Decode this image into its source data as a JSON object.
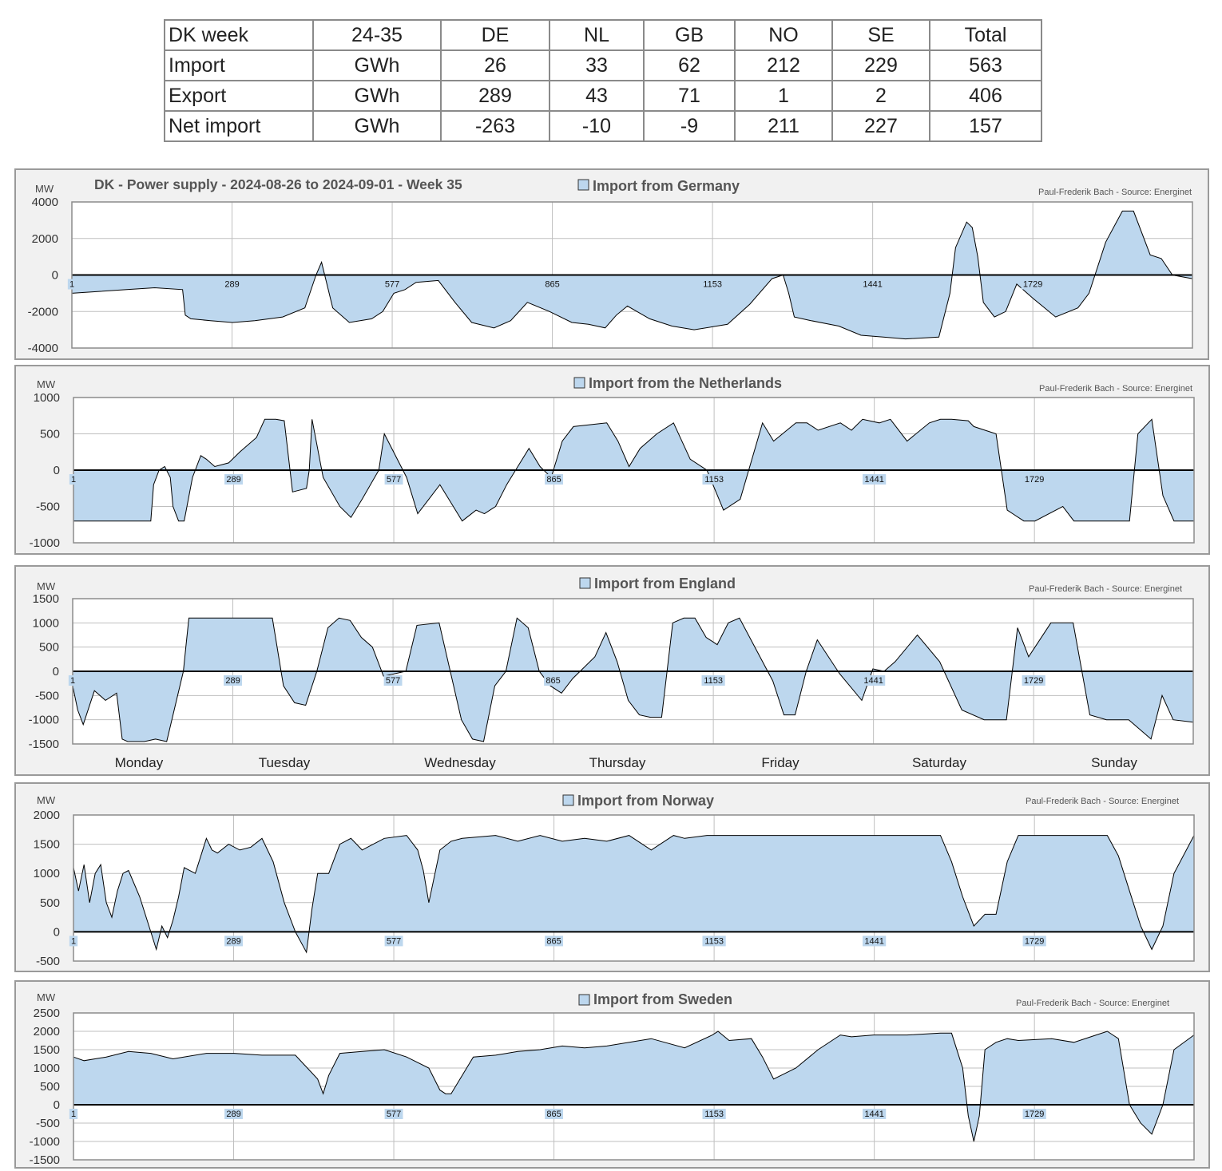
{
  "table": {
    "header": [
      "DK week",
      "24-35",
      "DE",
      "NL",
      "GB",
      "NO",
      "SE",
      "Total"
    ],
    "rows": [
      [
        "Import",
        "GWh",
        "26",
        "33",
        "62",
        "212",
        "229",
        "563"
      ],
      [
        "Export",
        "GWh",
        "289",
        "43",
        "71",
        "1",
        "2",
        "406"
      ],
      [
        "Net import",
        "GWh",
        "-263",
        "-10",
        "-9",
        "211",
        "227",
        "157"
      ]
    ]
  },
  "colors": {
    "fill": "#bdd7ee",
    "line": "#000000",
    "panel": "#f1f1f1",
    "border": "#9a9a9a",
    "grid": "#bfbfbf",
    "label_bg": "#bdd7ee"
  },
  "chart_data": [
    {
      "type": "area",
      "title": "DK - Power supply - 2024-08-26 to 2024-09-01 - Week 35",
      "legend": "Import from Germany",
      "credit": "Paul-Frederik Bach - Source: Energinet",
      "ylabel": "MW",
      "ylim": [
        -4000,
        4000
      ],
      "yticks": [
        "4000",
        "2000",
        "0",
        "-2000",
        "-4000"
      ],
      "xlim": [
        1,
        2016
      ],
      "xticks": [
        "1",
        "289",
        "577",
        "865",
        "1153",
        "1441",
        "1729"
      ],
      "grid": true,
      "x": [
        1,
        50,
        100,
        150,
        200,
        205,
        215,
        250,
        290,
        330,
        380,
        420,
        440,
        450,
        470,
        500,
        540,
        560,
        580,
        600,
        620,
        660,
        690,
        720,
        760,
        790,
        820,
        860,
        900,
        930,
        960,
        980,
        1000,
        1040,
        1080,
        1120,
        1180,
        1220,
        1260,
        1280,
        1290,
        1300,
        1330,
        1380,
        1420,
        1460,
        1500,
        1560,
        1580,
        1590,
        1610,
        1620,
        1630,
        1640,
        1660,
        1680,
        1700,
        1730,
        1770,
        1810,
        1830,
        1860,
        1890,
        1910,
        1940,
        1960,
        1980,
        2016
      ],
      "y": [
        -1000,
        -900,
        -800,
        -700,
        -800,
        -2200,
        -2400,
        -2500,
        -2600,
        -2500,
        -2300,
        -1800,
        0,
        700,
        -1800,
        -2600,
        -2400,
        -2000,
        -1000,
        -800,
        -400,
        -300,
        -1500,
        -2600,
        -2900,
        -2500,
        -1500,
        -2000,
        -2600,
        -2700,
        -2900,
        -2200,
        -1700,
        -2400,
        -2800,
        -3000,
        -2700,
        -1600,
        -200,
        0,
        -1000,
        -2300,
        -2500,
        -2800,
        -3300,
        -3400,
        -3500,
        -3400,
        -1000,
        1500,
        2900,
        2600,
        1000,
        -1500,
        -2300,
        -2000,
        -500,
        -1300,
        -2300,
        -1800,
        -1000,
        1800,
        3500,
        3500,
        1100,
        900,
        0,
        -200
      ]
    },
    {
      "type": "area",
      "legend": "Import from the Netherlands",
      "credit": "Paul-Frederik Bach - Source: Energinet",
      "ylabel": "MW",
      "ylim": [
        -1000,
        1000
      ],
      "yticks": [
        "1000",
        "500",
        "0",
        "-500",
        "-1000"
      ],
      "xlim": [
        1,
        2016
      ],
      "xticks": [
        "1",
        "289",
        "577",
        "865",
        "1153",
        "1441",
        "1729"
      ],
      "grid": true,
      "x": [
        1,
        140,
        145,
        155,
        165,
        175,
        180,
        190,
        200,
        215,
        220,
        230,
        240,
        255,
        280,
        300,
        330,
        345,
        365,
        380,
        395,
        420,
        425,
        430,
        450,
        480,
        500,
        520,
        550,
        560,
        600,
        620,
        640,
        660,
        700,
        725,
        740,
        760,
        780,
        800,
        820,
        840,
        860,
        880,
        900,
        960,
        980,
        1000,
        1020,
        1050,
        1080,
        1110,
        1140,
        1170,
        1200,
        1240,
        1260,
        1300,
        1320,
        1340,
        1380,
        1400,
        1420,
        1450,
        1470,
        1500,
        1540,
        1560,
        1580,
        1610,
        1620,
        1660,
        1680,
        1710,
        1730,
        1780,
        1800,
        1840,
        1900,
        1915,
        1940,
        1960,
        1980,
        2016
      ],
      "y": [
        -700,
        -700,
        -200,
        0,
        50,
        -100,
        -500,
        -700,
        -700,
        -100,
        0,
        200,
        150,
        50,
        100,
        250,
        450,
        700,
        700,
        680,
        -300,
        -250,
        0,
        700,
        -100,
        -500,
        -650,
        -400,
        0,
        500,
        -100,
        -600,
        -400,
        -200,
        -700,
        -550,
        -600,
        -500,
        -200,
        50,
        300,
        50,
        -100,
        400,
        600,
        650,
        400,
        50,
        300,
        500,
        650,
        150,
        0,
        -550,
        -400,
        650,
        400,
        650,
        650,
        550,
        650,
        550,
        700,
        650,
        700,
        400,
        650,
        700,
        700,
        680,
        600,
        500,
        -550,
        -700,
        -700,
        -500,
        -700,
        -700,
        -700,
        500,
        700,
        -350,
        -700,
        -700
      ]
    },
    {
      "type": "area",
      "legend": "Import from England",
      "credit": "Paul-Frederik Bach - Source: Energinet",
      "ylabel": "MW",
      "ylim": [
        -1500,
        1500
      ],
      "yticks": [
        "1500",
        "1000",
        "500",
        "0",
        "-500",
        "-1000",
        "-1500"
      ],
      "xlim": [
        1,
        2016
      ],
      "xticks": [
        "1",
        "289",
        "577",
        "865",
        "1153",
        "1441",
        "1729"
      ],
      "xcategories": [
        "Monday",
        "Tuesday",
        "Wednesday",
        "Thursday",
        "Friday",
        "Saturday",
        "Sunday"
      ],
      "grid": true,
      "x": [
        1,
        10,
        20,
        40,
        60,
        80,
        90,
        100,
        120,
        130,
        150,
        170,
        200,
        205,
        210,
        215,
        220,
        230,
        240,
        280,
        320,
        360,
        380,
        400,
        420,
        440,
        460,
        480,
        500,
        520,
        540,
        560,
        600,
        620,
        660,
        700,
        720,
        740,
        760,
        780,
        800,
        820,
        840,
        860,
        880,
        900,
        940,
        960,
        980,
        1000,
        1020,
        1040,
        1060,
        1080,
        1100,
        1120,
        1140,
        1160,
        1180,
        1200,
        1260,
        1280,
        1300,
        1320,
        1340,
        1380,
        1420,
        1440,
        1460,
        1480,
        1520,
        1560,
        1600,
        1640,
        1680,
        1700,
        1720,
        1760,
        1800,
        1830,
        1860,
        1900,
        1940,
        1960,
        1980,
        2016
      ],
      "y": [
        -300,
        -800,
        -1100,
        -400,
        -600,
        -450,
        -1400,
        -1450,
        -1450,
        -1450,
        -1400,
        -1450,
        0,
        550,
        1100,
        1100,
        1100,
        1100,
        1100,
        1100,
        1100,
        1100,
        -300,
        -650,
        -700,
        0,
        900,
        1100,
        1050,
        700,
        500,
        -100,
        0,
        950,
        1000,
        -1000,
        -1400,
        -1450,
        -300,
        0,
        1100,
        900,
        0,
        -300,
        -450,
        -150,
        300,
        800,
        200,
        -600,
        -900,
        -950,
        -950,
        1000,
        1100,
        1100,
        700,
        550,
        1000,
        1100,
        -200,
        -900,
        -900,
        0,
        650,
        -50,
        -600,
        50,
        0,
        200,
        750,
        200,
        -800,
        -1000,
        -1000,
        900,
        300,
        1000,
        1000,
        -900,
        -1000,
        -1000,
        -1400,
        -500,
        -1000,
        -1050
      ]
    },
    {
      "type": "area",
      "legend": "Import from Norway",
      "credit": "Paul-Frederik Bach - Source: Energinet",
      "ylabel": "MW",
      "ylim": [
        -500,
        2000
      ],
      "yticks": [
        "2000",
        "1500",
        "1000",
        "500",
        "0",
        "-500"
      ],
      "xlim": [
        1,
        2016
      ],
      "xticks": [
        "1",
        "289",
        "577",
        "865",
        "1153",
        "1441",
        "1729"
      ],
      "grid": true,
      "x": [
        1,
        10,
        20,
        30,
        40,
        50,
        60,
        70,
        80,
        90,
        100,
        120,
        140,
        150,
        160,
        170,
        180,
        190,
        200,
        220,
        240,
        250,
        260,
        280,
        300,
        320,
        340,
        360,
        380,
        400,
        420,
        430,
        440,
        460,
        480,
        500,
        520,
        540,
        560,
        600,
        620,
        630,
        640,
        660,
        680,
        700,
        760,
        800,
        840,
        880,
        920,
        960,
        1000,
        1040,
        1080,
        1100,
        1140,
        1200,
        1260,
        1300,
        1320,
        1360,
        1400,
        1440,
        1500,
        1560,
        1580,
        1600,
        1620,
        1640,
        1660,
        1680,
        1700,
        1720,
        1760,
        1800,
        1830,
        1860,
        1880,
        1900,
        1920,
        1940,
        1960,
        1980,
        2016
      ],
      "y": [
        1100,
        700,
        1150,
        500,
        1000,
        1150,
        500,
        250,
        700,
        1000,
        1050,
        600,
        0,
        -300,
        100,
        -100,
        200,
        600,
        1100,
        1000,
        1600,
        1400,
        1350,
        1500,
        1400,
        1450,
        1600,
        1200,
        500,
        0,
        -350,
        400,
        1000,
        1000,
        1500,
        1600,
        1400,
        1500,
        1600,
        1650,
        1400,
        1050,
        500,
        1400,
        1550,
        1600,
        1650,
        1550,
        1650,
        1550,
        1600,
        1550,
        1650,
        1400,
        1650,
        1600,
        1650,
        1650,
        1650,
        1650,
        1650,
        1650,
        1650,
        1650,
        1650,
        1650,
        1200,
        600,
        100,
        300,
        300,
        1200,
        1650,
        1650,
        1650,
        1650,
        1650,
        1650,
        1300,
        700,
        100,
        -300,
        100,
        1000,
        1650
      ]
    },
    {
      "type": "area",
      "legend": "Import from Sweden",
      "credit": "Paul-Frederik Bach - Source: Energinet",
      "ylabel": "MW",
      "ylim": [
        -1500,
        2500
      ],
      "yticks": [
        "2500",
        "2000",
        "1500",
        "1000",
        "500",
        "0",
        "-500",
        "-1000",
        "-1500"
      ],
      "xlim": [
        1,
        2016
      ],
      "xticks": [
        "1",
        "289",
        "577",
        "865",
        "1153",
        "1441",
        "1729"
      ],
      "grid": true,
      "x": [
        1,
        20,
        60,
        100,
        140,
        180,
        240,
        290,
        340,
        400,
        440,
        450,
        460,
        480,
        520,
        560,
        600,
        640,
        660,
        670,
        680,
        700,
        720,
        760,
        800,
        840,
        880,
        920,
        960,
        1040,
        1100,
        1150,
        1160,
        1180,
        1220,
        1240,
        1260,
        1280,
        1300,
        1340,
        1380,
        1400,
        1440,
        1500,
        1560,
        1580,
        1600,
        1610,
        1620,
        1630,
        1640,
        1660,
        1680,
        1700,
        1760,
        1800,
        1840,
        1860,
        1880,
        1900,
        1920,
        1940,
        1960,
        1980,
        2016
      ],
      "y": [
        1300,
        1200,
        1300,
        1450,
        1400,
        1250,
        1400,
        1400,
        1350,
        1350,
        700,
        300,
        800,
        1400,
        1450,
        1500,
        1300,
        1000,
        400,
        300,
        300,
        800,
        1300,
        1350,
        1450,
        1500,
        1600,
        1550,
        1600,
        1800,
        1550,
        1900,
        2000,
        1750,
        1800,
        1300,
        700,
        850,
        1000,
        1500,
        1900,
        1850,
        1900,
        1900,
        1950,
        1950,
        1000,
        -300,
        -1000,
        -300,
        1500,
        1700,
        1800,
        1750,
        1800,
        1700,
        1900,
        2000,
        1800,
        0,
        -500,
        -800,
        0,
        1500,
        1900
      ]
    }
  ]
}
